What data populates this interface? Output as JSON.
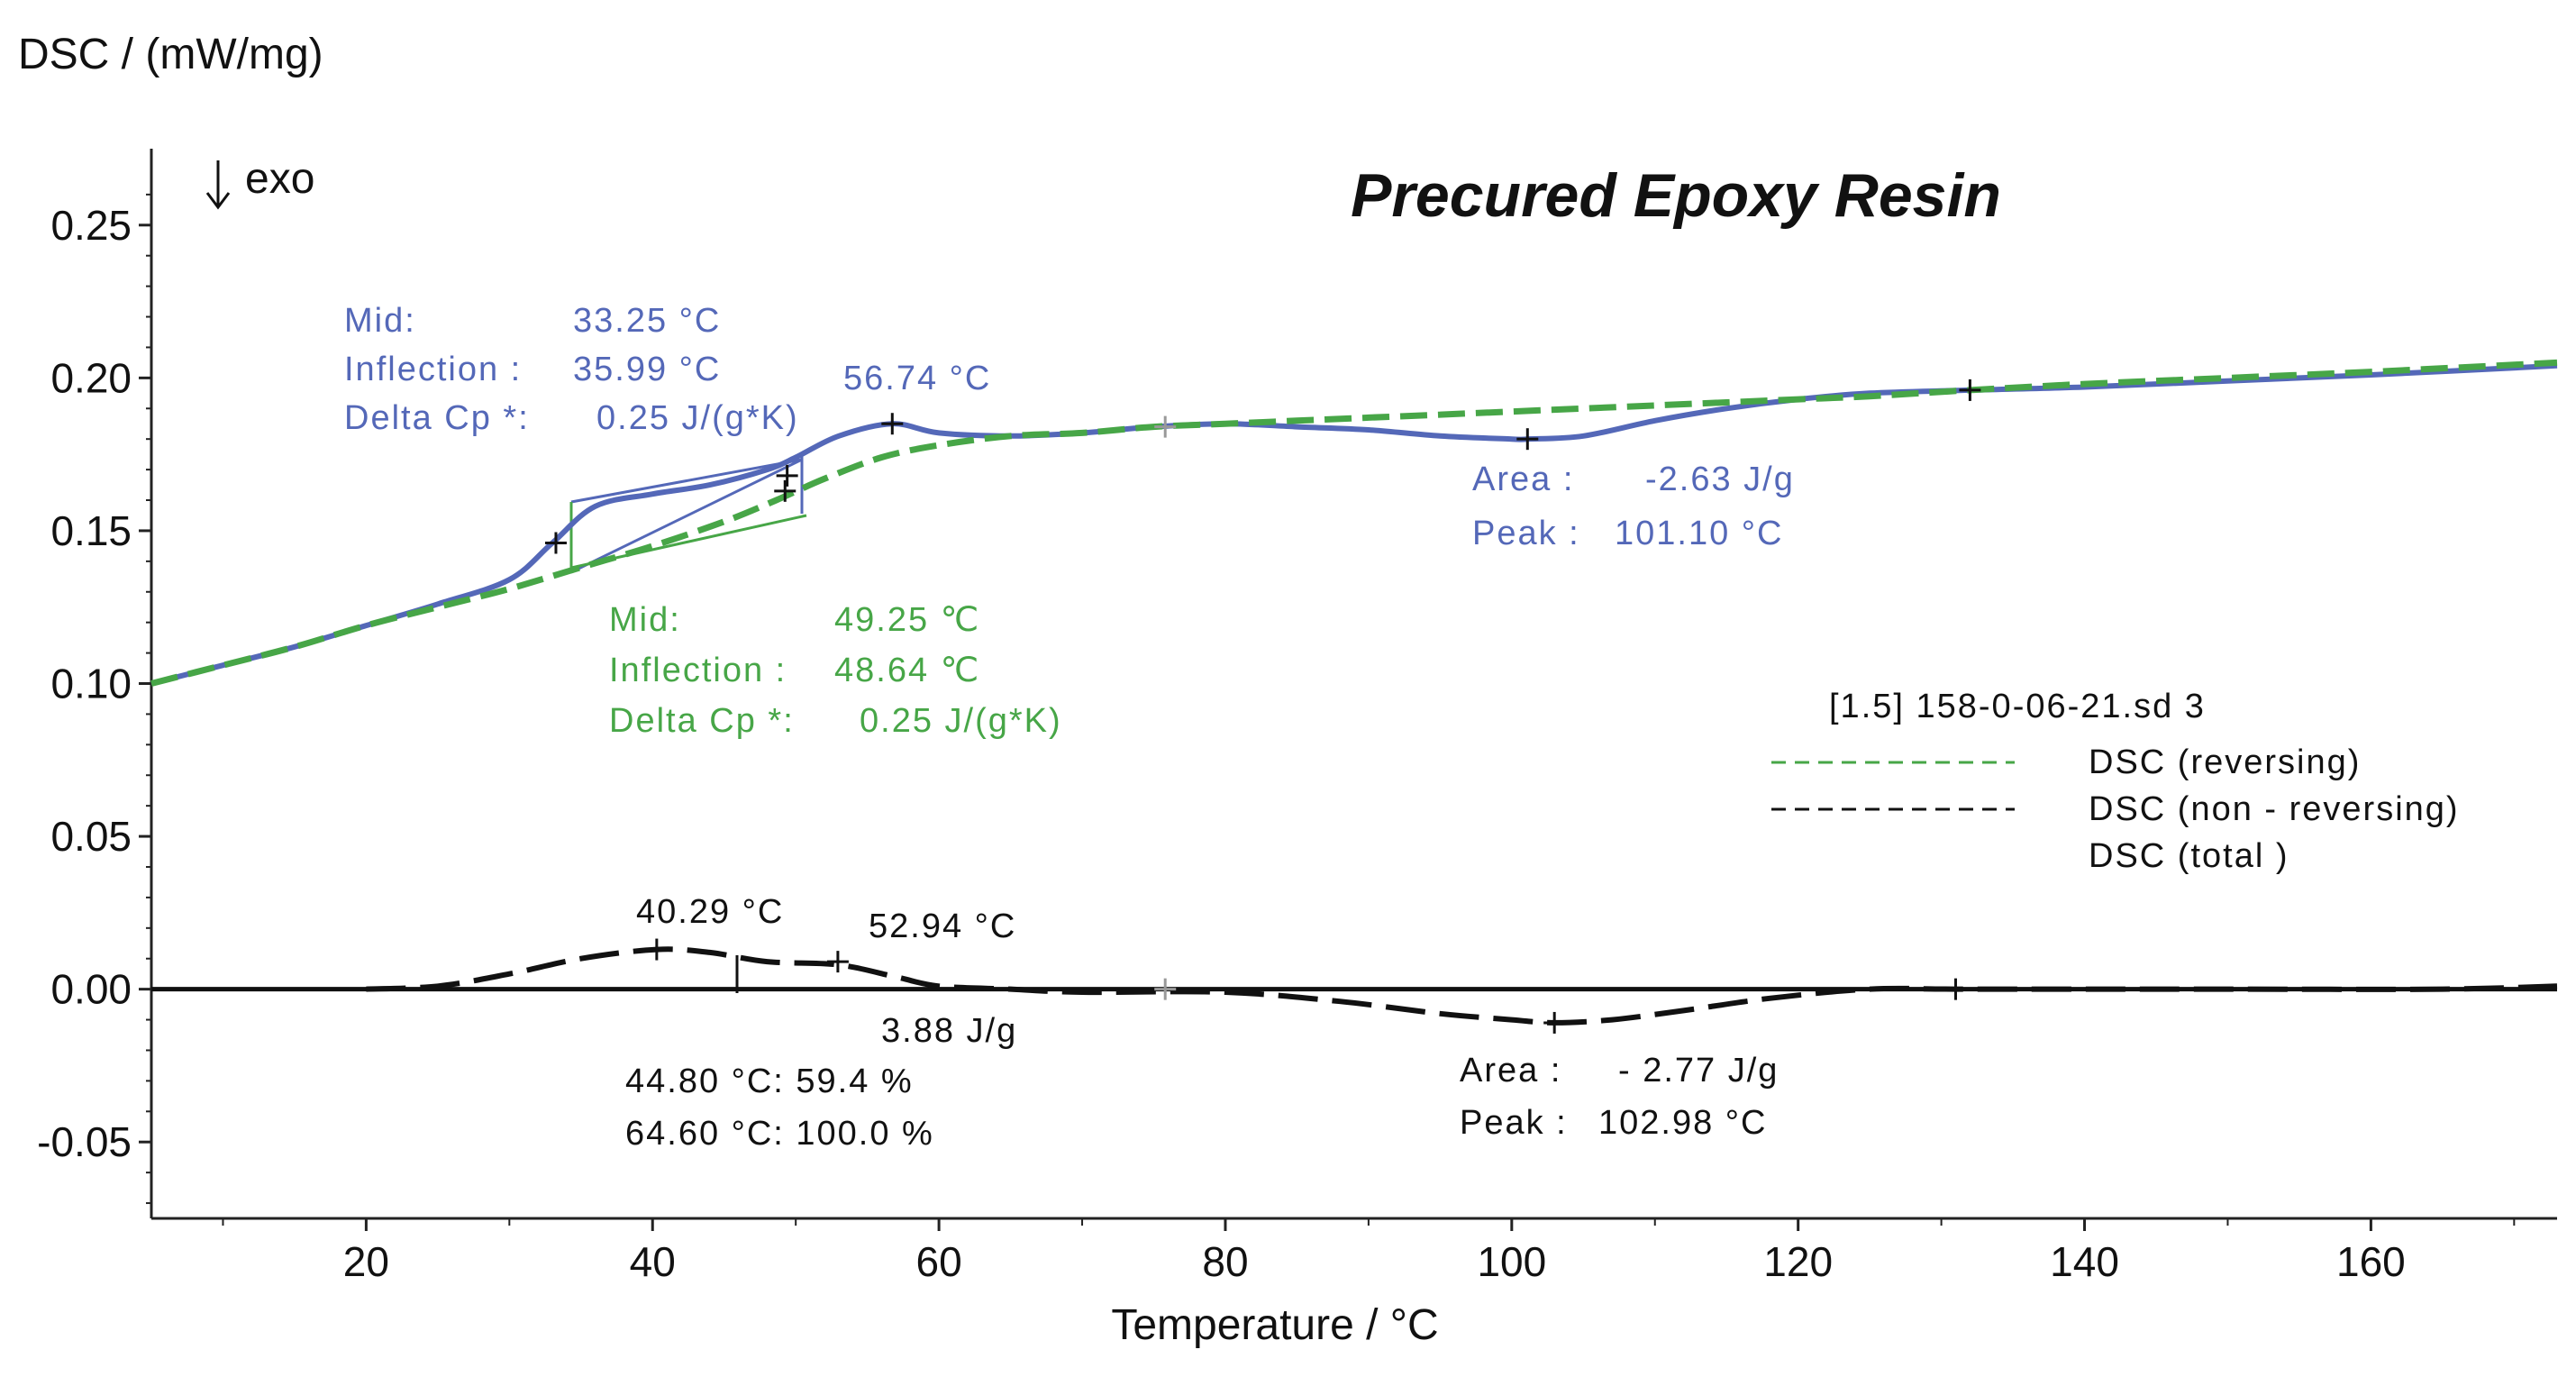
{
  "chart_data": {
    "type": "line",
    "title": "Precured Epoxy Resin",
    "ylabel": "DSC / (mW/mg)",
    "xlabel": "Temperature / °C",
    "direction_label": "exo",
    "xlim": [
      5,
      173
    ],
    "ylim": [
      -0.075,
      0.275
    ],
    "xticks": [
      20,
      40,
      60,
      80,
      100,
      120,
      140,
      160
    ],
    "yticks": [
      0.25,
      0.2,
      0.15,
      0.1,
      0.05,
      0.0,
      -0.05
    ],
    "ytick_labels": [
      "0.25",
      "0.20",
      "0.15",
      "0.10",
      "0.05",
      "0.00",
      "-0.05"
    ],
    "colors": {
      "reversing": "#47a647",
      "total": "#5468b8",
      "non_reversing": "#111111"
    },
    "legend": {
      "file": "[1.5] 158-0-06-21.sd 3",
      "entries": [
        "DSC  (reversing)",
        "DSC  (non -  reversing)",
        "DSC  (total )"
      ]
    },
    "series": [
      {
        "name": "DSC (total)",
        "x": [
          5,
          10,
          15,
          20,
          25,
          30,
          33,
          36,
          40,
          44,
          48,
          50,
          53,
          56.74,
          60,
          65,
          70,
          75,
          80,
          85,
          90,
          95,
          100,
          101.1,
          105,
          110,
          115,
          120,
          125,
          132,
          140,
          150,
          160,
          173
        ],
        "y": [
          0.1,
          0.106,
          0.112,
          0.119,
          0.126,
          0.134,
          0.146,
          0.158,
          0.162,
          0.165,
          0.17,
          0.174,
          0.181,
          0.185,
          0.182,
          0.181,
          0.182,
          0.184,
          0.185,
          0.184,
          0.183,
          0.181,
          0.18,
          0.18,
          0.181,
          0.186,
          0.19,
          0.193,
          0.195,
          0.196,
          0.197,
          0.199,
          0.201,
          0.204
        ]
      },
      {
        "name": "DSC (reversing)",
        "x": [
          5,
          10,
          15,
          20,
          25,
          30,
          35,
          40,
          45,
          48.64,
          52,
          56,
          60,
          65,
          70,
          75,
          80,
          85,
          90,
          95,
          100,
          105,
          110,
          115,
          120,
          125,
          132,
          140,
          150,
          160,
          173
        ],
        "y": [
          0.1,
          0.106,
          0.112,
          0.119,
          0.125,
          0.131,
          0.138,
          0.145,
          0.153,
          0.16,
          0.167,
          0.174,
          0.178,
          0.181,
          0.182,
          0.184,
          0.185,
          0.186,
          0.187,
          0.188,
          0.189,
          0.19,
          0.191,
          0.192,
          0.193,
          0.194,
          0.196,
          0.198,
          0.2,
          0.202,
          0.205
        ]
      },
      {
        "name": "DSC (non-reversing)",
        "x": [
          20,
          25,
          30,
          35,
          40.29,
          44,
          48,
          52.94,
          57,
          60,
          65,
          70,
          80,
          88,
          95,
          100,
          102.98,
          107,
          112,
          118,
          125,
          131,
          140,
          150,
          165,
          173
        ],
        "y": [
          0.0,
          0.001,
          0.005,
          0.01,
          0.013,
          0.012,
          0.009,
          0.008,
          0.004,
          0.001,
          0.0,
          -0.001,
          -0.001,
          -0.004,
          -0.008,
          -0.01,
          -0.011,
          -0.01,
          -0.007,
          -0.003,
          0.0,
          0.0,
          0.0,
          0.0,
          0.0,
          0.001
        ]
      },
      {
        "name": "Baseline",
        "x": [
          5,
          173
        ],
        "y": [
          0.0,
          0.0
        ]
      }
    ],
    "markers": [
      {
        "series": "DSC (total)",
        "x": 33.25,
        "y": 0.146
      },
      {
        "series": "DSC (total)",
        "x": 49.4,
        "y": 0.168
      },
      {
        "series": "DSC (total)",
        "x": 56.74,
        "y": 0.185
      },
      {
        "series": "DSC (total)",
        "x": 101.1,
        "y": 0.18
      },
      {
        "series": "DSC (total)",
        "x": 132,
        "y": 0.196
      },
      {
        "series": "DSC (reversing)",
        "x": 49.25,
        "y": 0.163
      },
      {
        "series": "DSC (reversing)",
        "x": 75.8,
        "y": 0.184
      },
      {
        "series": "DSC (non-reversing)",
        "x": 40.29,
        "y": 0.013
      },
      {
        "series": "DSC (non-reversing)",
        "x": 52.94,
        "y": 0.009
      },
      {
        "series": "DSC (non-reversing)",
        "x": 102.98,
        "y": -0.011
      },
      {
        "series": "DSC (non-reversing)",
        "x": 75.8,
        "y": 0.0
      },
      {
        "series": "DSC (non-reversing)",
        "x": 131,
        "y": 0.0
      }
    ],
    "annotations": {
      "total_glass": {
        "mid_label": "Mid:",
        "mid_value": "33.25 °C",
        "inflection_label": "Inflection :",
        "inflection_value": "35.99 °C",
        "delta_label": "Delta Cp *:",
        "delta_value": "0.25 J/(g*K)",
        "peak_temp": "56.74 °C"
      },
      "total_peak": {
        "area_label": "Area :",
        "area_value": "-2.63 J/g",
        "peak_label": "Peak :",
        "peak_value": "101.10 °C"
      },
      "reversing_glass": {
        "mid_label": "Mid:",
        "mid_value": "49.25 ℃",
        "inflection_label": "Inflection :",
        "inflection_value": "48.64 ℃",
        "delta_label": "Delta Cp *:",
        "delta_value": "0.25 J/(g*K)"
      },
      "nonrev_peaks": {
        "peak1": "40.29 °C",
        "peak2": "52.94 °C",
        "area": "3.88 J/g",
        "partial1": "44.80 °C:   59.4 %",
        "partial2": "64.60 °C:  100.0 %"
      },
      "nonrev_peak": {
        "area_label": "Area :",
        "area_value": "- 2.77 J/g",
        "peak_label": "Peak :",
        "peak_value": "102.98 °C"
      }
    }
  }
}
